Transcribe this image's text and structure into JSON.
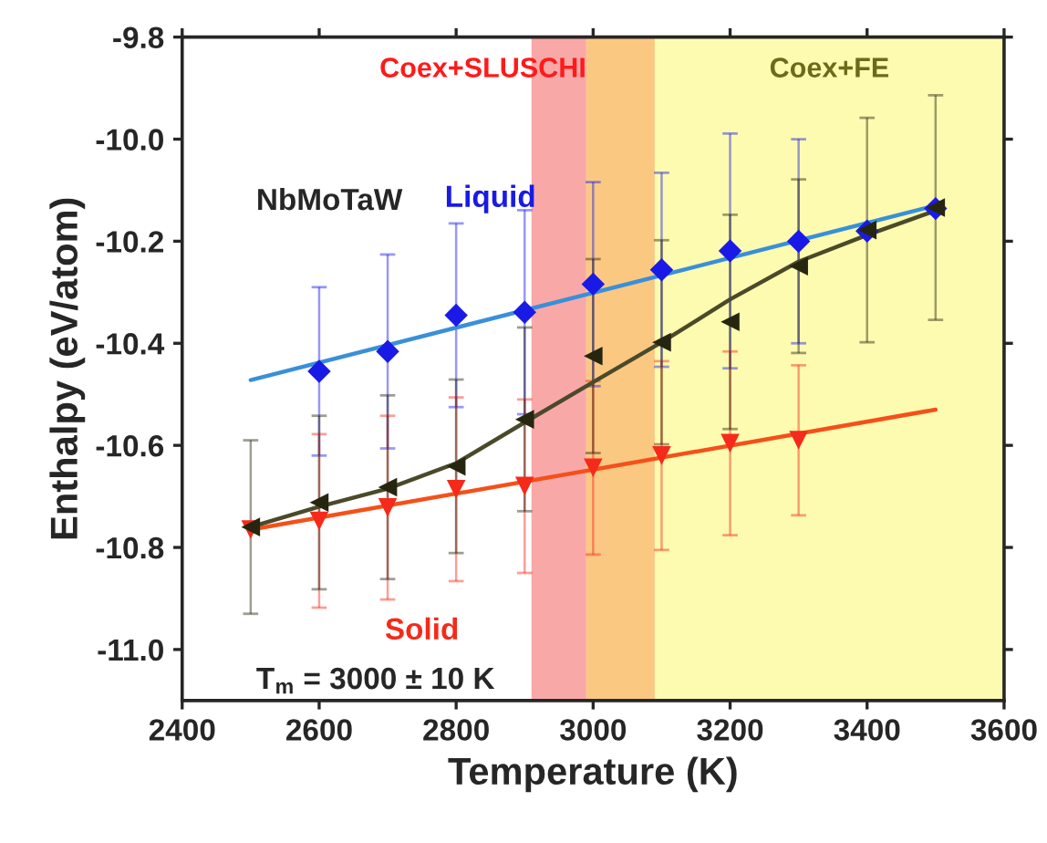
{
  "chart_data": {
    "type": "scatter",
    "xlabel": "Temperature (K)",
    "ylabel": "Enthalpy (eV/atom)",
    "xlim": [
      2400,
      3600
    ],
    "xticks": [
      2400,
      2600,
      2800,
      3000,
      3200,
      3400,
      3600
    ],
    "ylim": [
      -11.1,
      -9.8
    ],
    "yticks": [
      -9.8,
      {
        "value": -10.0,
        "label": "-10.0"
      },
      -10.2,
      -10.4,
      -10.6,
      -10.8,
      {
        "value": -11.0,
        "label": "-11.0"
      }
    ],
    "grid": false,
    "legend": false,
    "bands": [
      {
        "axis": "x",
        "from": 2910,
        "to": 2990,
        "label": "Coex+SLUSCHI",
        "color": "#f9a8a8"
      },
      {
        "axis": "x",
        "from": 2990,
        "to": 3090,
        "label": null,
        "color": "#fbc882"
      },
      {
        "axis": "x",
        "from": 3090,
        "to": 3600,
        "label": "Coex+FE",
        "color": "#fdfbb0"
      }
    ],
    "annotations": [
      "NbMoTaW",
      "T$_{m}$ = 3000 ± 10 K"
    ],
    "series": [
      {
        "name": "Liquid",
        "marker": "diamond",
        "color": "#1a1ae6",
        "x": [
          2600,
          2700,
          2800,
          2900,
          3000,
          3100,
          3200,
          3300,
          3400,
          3500
        ],
        "values": [
          -10.455,
          -10.416,
          -10.345,
          -10.339,
          -10.284,
          -10.256,
          -10.219,
          -10.2,
          -10.18,
          -10.136
        ],
        "errors": [
          0.165,
          0.19,
          0.18,
          0.2,
          0.2,
          0.19,
          0.23,
          0.2,
          null,
          null
        ]
      },
      {
        "name": "Solid",
        "marker": "triangle_down",
        "color": "#f52a1a",
        "x": [
          2500,
          2600,
          2700,
          2800,
          2900,
          3000,
          3100,
          3200,
          3300
        ],
        "values": [
          -10.765,
          -10.748,
          -10.722,
          -10.686,
          -10.68,
          -10.644,
          -10.62,
          -10.596,
          -10.59
        ],
        "errors": [
          null,
          0.17,
          0.18,
          0.18,
          0.17,
          0.17,
          0.185,
          0.18,
          0.147
        ]
      },
      {
        "marker": "triangle_left",
        "color": "#262610",
        "x": [
          2500,
          2600,
          2700,
          2800,
          2900,
          3000,
          3100,
          3200,
          3300,
          3400,
          3500
        ],
        "values": [
          -10.76,
          -10.712,
          -10.682,
          -10.641,
          -10.549,
          -10.425,
          -10.398,
          -10.358,
          -10.249,
          -10.178,
          -10.134
        ],
        "errors": [
          0.17,
          0.17,
          0.18,
          0.17,
          0.18,
          0.19,
          0.2,
          0.21,
          0.17,
          0.22,
          0.22
        ]
      },
      {
        "type": "line",
        "color": "#3a8fd8",
        "x": [
          2500,
          3500
        ],
        "values": [
          -10.472,
          -10.13
        ]
      },
      {
        "type": "line",
        "color": "#f5501a",
        "x": [
          2500,
          3500
        ],
        "values": [
          -10.765,
          -10.53
        ]
      },
      {
        "type": "line",
        "color": "#4a4a2a",
        "x": [
          2500,
          2600,
          2700,
          2800,
          2900,
          3000,
          3100,
          3200,
          3300,
          3400,
          3500
        ],
        "values": [
          -10.76,
          -10.72,
          -10.685,
          -10.635,
          -10.555,
          -10.476,
          -10.398,
          -10.314,
          -10.24,
          -10.188,
          -10.14
        ]
      }
    ]
  }
}
